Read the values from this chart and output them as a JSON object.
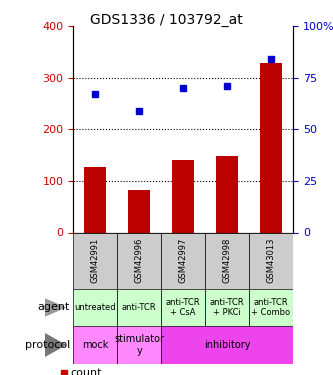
{
  "title": "GDS1336 / 103792_at",
  "samples": [
    "GSM42991",
    "GSM42996",
    "GSM42997",
    "GSM42998",
    "GSM43013"
  ],
  "counts": [
    128,
    83,
    141,
    148,
    328
  ],
  "percentile_ranks": [
    67,
    59,
    70,
    71,
    84
  ],
  "left_yaxis": {
    "min": 0,
    "max": 400,
    "ticks": [
      0,
      100,
      200,
      300,
      400
    ],
    "color": "#cc0000"
  },
  "right_yaxis": {
    "min": 0,
    "max": 100,
    "ticks": [
      0,
      25,
      50,
      75,
      100
    ],
    "color": "#0000cc"
  },
  "bar_color": "#bb0000",
  "dot_color": "#0000cc",
  "agent_labels": [
    "untreated",
    "anti-TCR",
    "anti-TCR\n+ CsA",
    "anti-TCR\n+ PKCi",
    "anti-TCR\n+ Combo"
  ],
  "agent_bg": "#ccffcc",
  "gsm_bg": "#cccccc",
  "protocol_items": [
    {
      "start": 0,
      "end": 0,
      "label": "mock",
      "bg": "#ff88ff"
    },
    {
      "start": 1,
      "end": 1,
      "label": "stimulator\ny",
      "bg": "#ff88ff"
    },
    {
      "start": 2,
      "end": 4,
      "label": "inhibitory",
      "bg": "#ee44ee"
    }
  ],
  "legend_count_color": "#cc0000",
  "legend_pct_color": "#0000cc"
}
